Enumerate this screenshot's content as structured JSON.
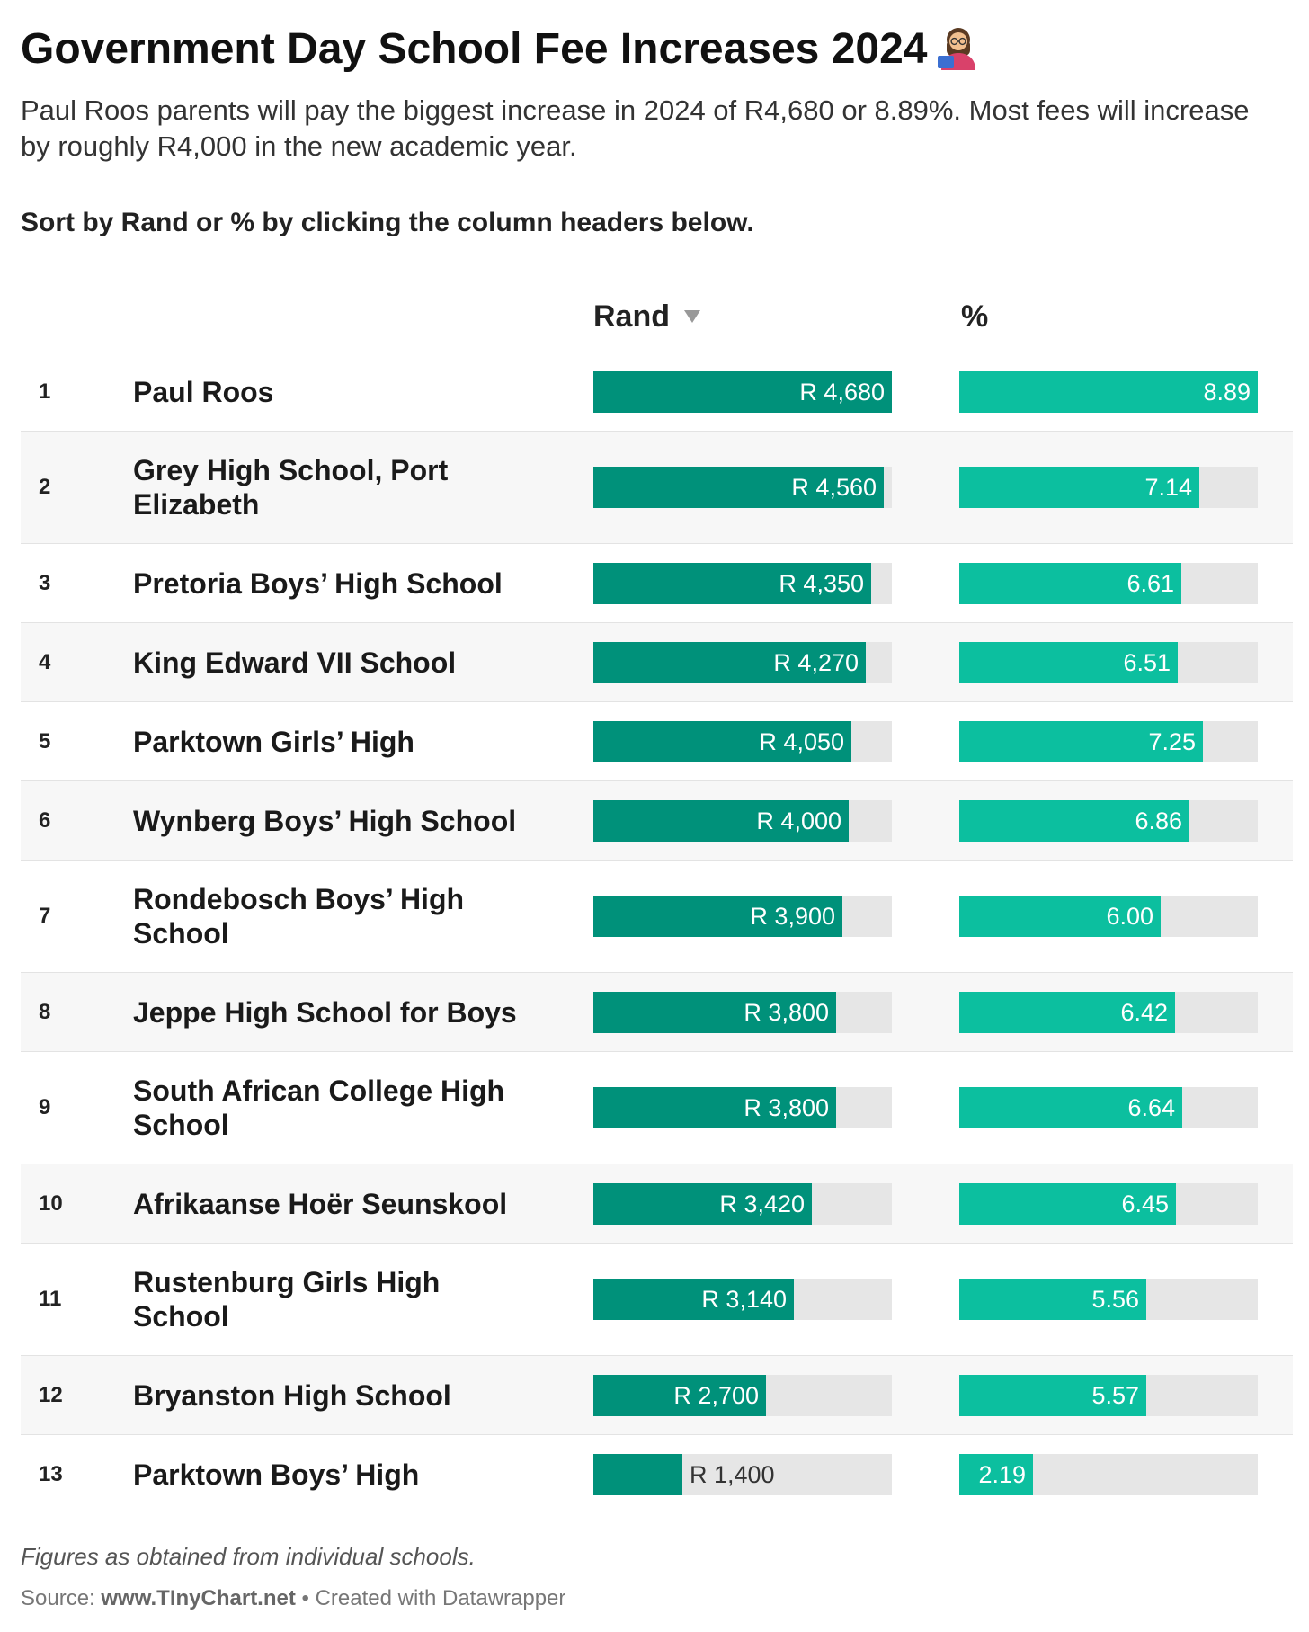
{
  "title": "Government Day School Fee Increases 2024",
  "title_icon": "teacher-emoji-icon",
  "subtitle": "Paul Roos parents will pay the biggest increase in 2024 of R4,680 or 8.89%. Most fees will increase by roughly R4,000 in the new academic year.",
  "instruction": "Sort by Rand or % by clicking the column headers below.",
  "columns": {
    "rand": "Rand",
    "pct": "%"
  },
  "colors": {
    "rand_bar": "#00917a",
    "pct_bar": "#0cbf9f",
    "track": "#e6e6e6"
  },
  "chart_data": {
    "type": "table",
    "sorted_by": "Rand",
    "sort_direction": "descending",
    "rand_max": 4680,
    "pct_max": 8.89,
    "rows": [
      {
        "rank": "1",
        "school": "Paul Roos",
        "rand": 4680,
        "rand_label": "R 4,680",
        "pct": 8.89,
        "pct_label": "8.89"
      },
      {
        "rank": "2",
        "school": "Grey High School, Port Elizabeth",
        "rand": 4560,
        "rand_label": "R 4,560",
        "pct": 7.14,
        "pct_label": "7.14"
      },
      {
        "rank": "3",
        "school": "Pretoria Boys’ High School",
        "rand": 4350,
        "rand_label": "R 4,350",
        "pct": 6.61,
        "pct_label": "6.61"
      },
      {
        "rank": "4",
        "school": "King Edward VII School",
        "rand": 4270,
        "rand_label": "R 4,270",
        "pct": 6.51,
        "pct_label": "6.51"
      },
      {
        "rank": "5",
        "school": "Parktown Girls’ High",
        "rand": 4050,
        "rand_label": "R 4,050",
        "pct": 7.25,
        "pct_label": "7.25"
      },
      {
        "rank": "6",
        "school": "Wynberg Boys’ High School",
        "rand": 4000,
        "rand_label": "R 4,000",
        "pct": 6.86,
        "pct_label": "6.86"
      },
      {
        "rank": "7",
        "school": "Rondebosch Boys’ High School",
        "rand": 3900,
        "rand_label": "R 3,900",
        "pct": 6.0,
        "pct_label": "6.00"
      },
      {
        "rank": "8",
        "school": "Jeppe High School for Boys",
        "rand": 3800,
        "rand_label": "R 3,800",
        "pct": 6.42,
        "pct_label": "6.42"
      },
      {
        "rank": "9",
        "school": "South African College High School",
        "rand": 3800,
        "rand_label": "R 3,800",
        "pct": 6.64,
        "pct_label": "6.64"
      },
      {
        "rank": "10",
        "school": "Afrikaanse Hoër Seunskool",
        "rand": 3420,
        "rand_label": "R 3,420",
        "pct": 6.45,
        "pct_label": "6.45"
      },
      {
        "rank": "11",
        "school": "Rustenburg Girls High School",
        "rand": 3140,
        "rand_label": "R 3,140",
        "pct": 5.56,
        "pct_label": "5.56"
      },
      {
        "rank": "12",
        "school": "Bryanston High School",
        "rand": 2700,
        "rand_label": "R 2,700",
        "pct": 5.57,
        "pct_label": "5.57"
      },
      {
        "rank": "13",
        "school": "Parktown Boys’ High",
        "rand": 1400,
        "rand_label": "R 1,400",
        "pct": 2.19,
        "pct_label": "2.19"
      }
    ]
  },
  "footnote": "Figures as obtained from individual schools.",
  "source": {
    "prefix": "Source: ",
    "site": "www.TInyChart.net",
    "suffix": " • Created with Datawrapper"
  }
}
